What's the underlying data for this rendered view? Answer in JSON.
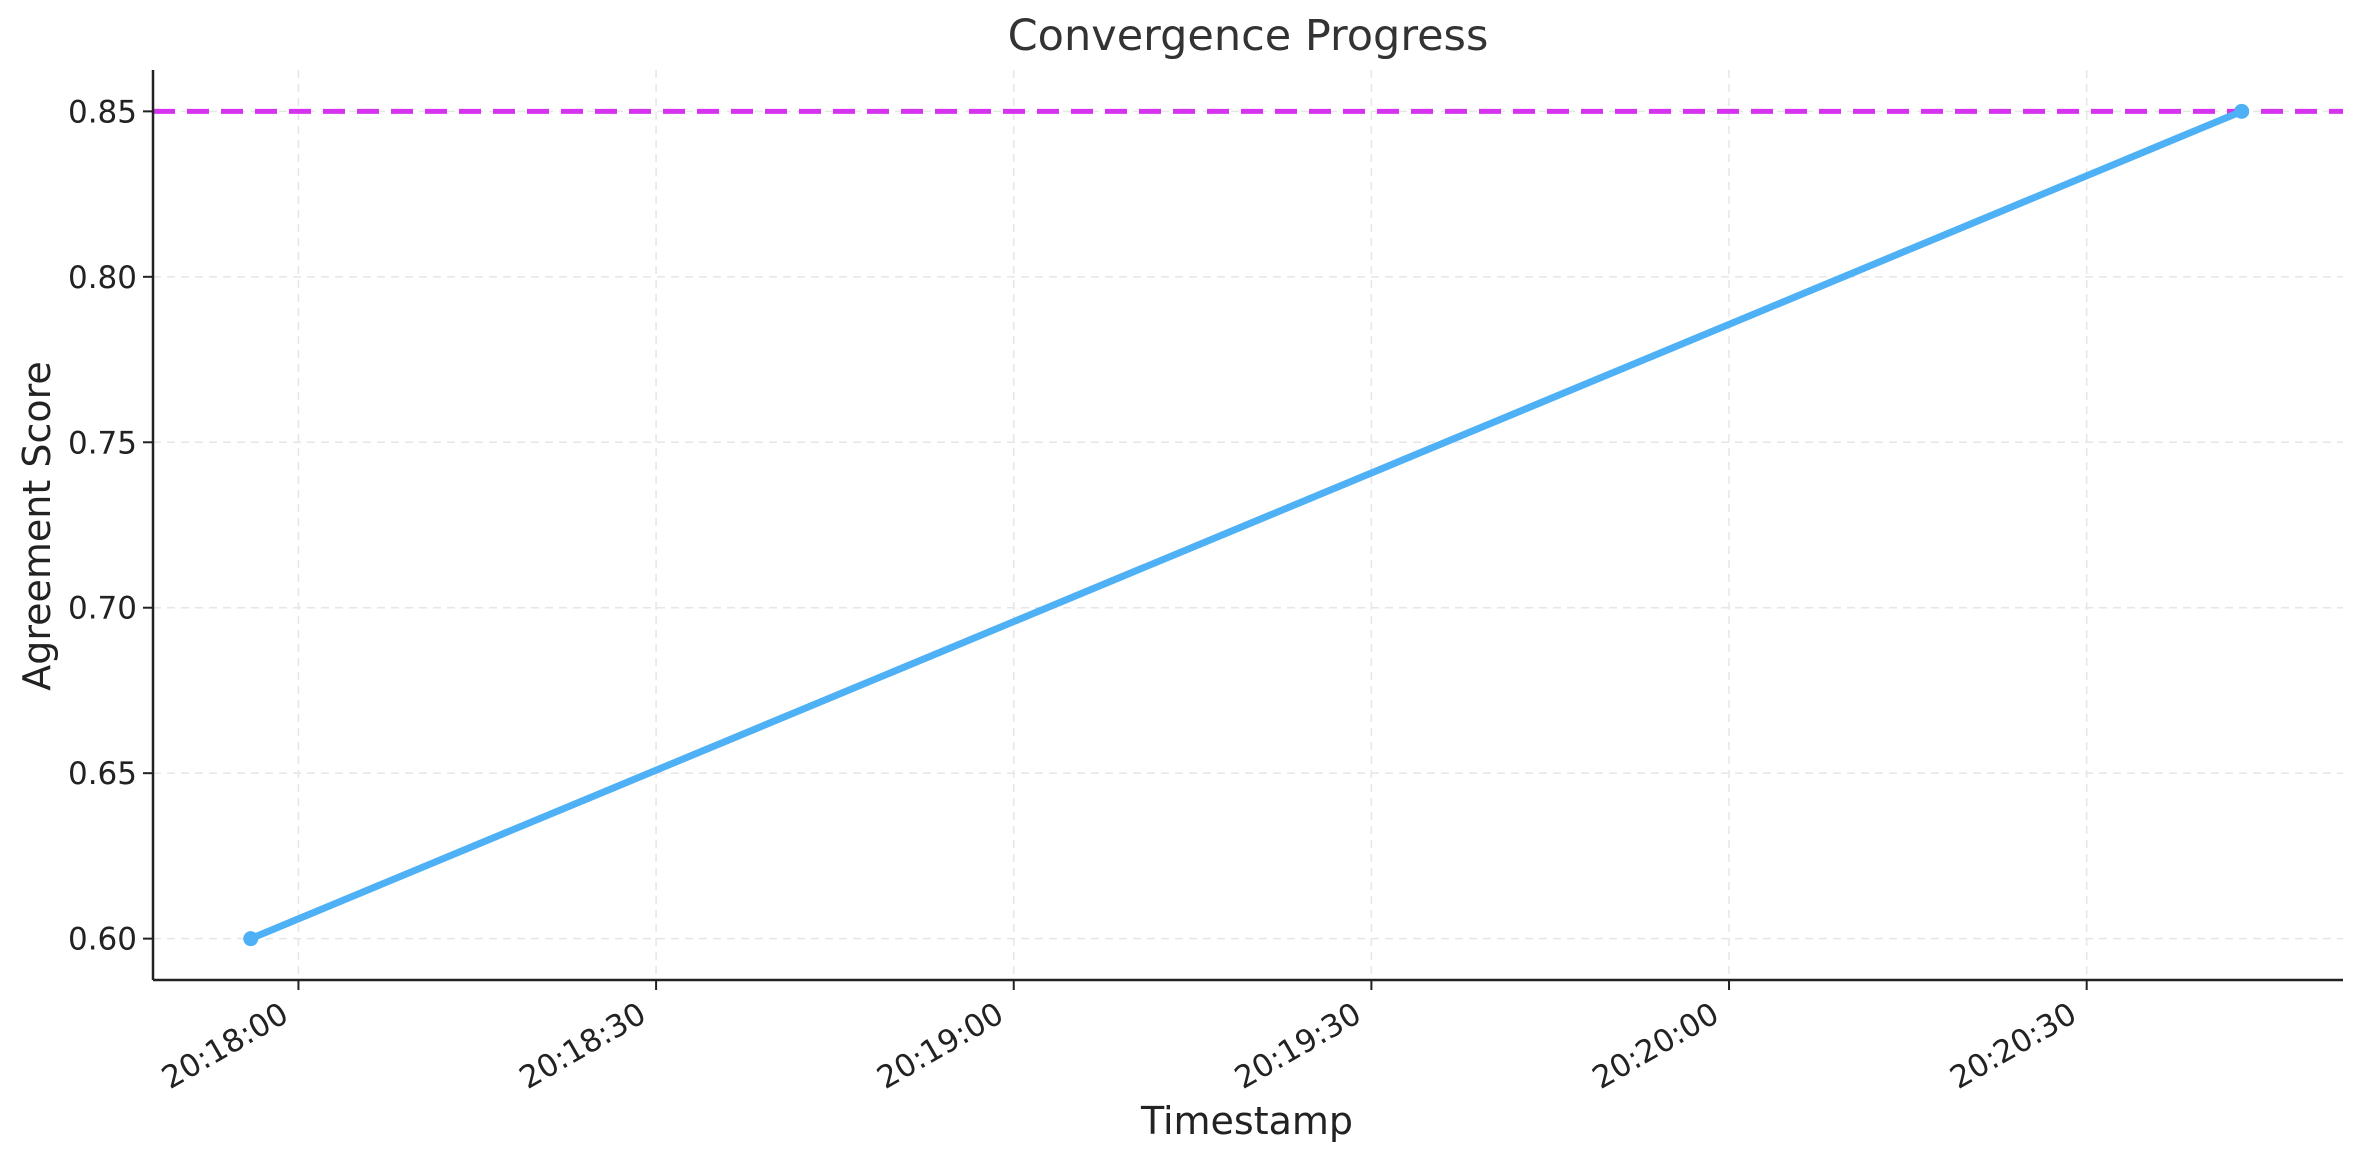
{
  "chart_data": {
    "type": "line",
    "title": "Convergence Progress",
    "xlabel": "Timestamp",
    "ylabel": "Agreement Score",
    "x_tick_labels": [
      "20:18:00",
      "20:18:30",
      "20:19:00",
      "20:19:30",
      "20:20:00",
      "20:20:30"
    ],
    "x_tick_seconds": [
      0,
      30,
      60,
      90,
      120,
      150
    ],
    "xlim_seconds": [
      -12.2,
      171.5
    ],
    "y_ticks": [
      0.6,
      0.65,
      0.7,
      0.75,
      0.8,
      0.85
    ],
    "y_tick_labels": [
      "0.60",
      "0.65",
      "0.70",
      "0.75",
      "0.80",
      "0.85"
    ],
    "ylim": [
      0.5875,
      0.8625
    ],
    "grid": true,
    "series": [
      {
        "points": [
          {
            "time": "20:17:56",
            "value": 0.6
          },
          {
            "time": "20:20:43",
            "value": 0.85
          }
        ],
        "color": "#4eb0f5",
        "marker": "circle"
      }
    ],
    "reference_lines": [
      {
        "orientation": "horizontal",
        "value": 0.85,
        "style": "dashed",
        "color": "#d633f0"
      }
    ]
  }
}
